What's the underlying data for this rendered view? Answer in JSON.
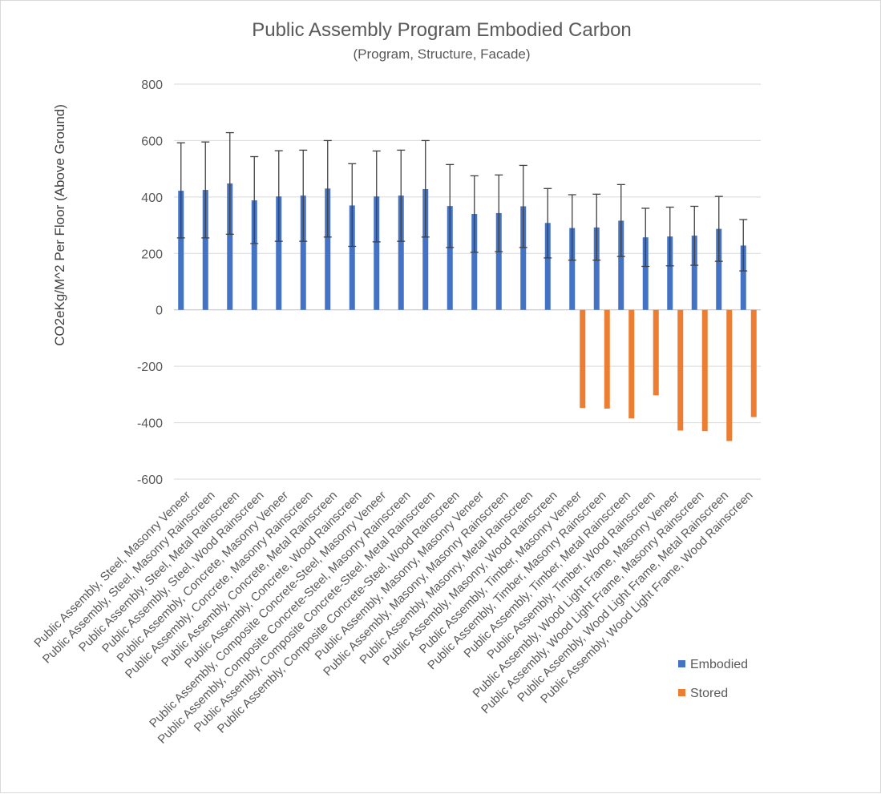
{
  "chart_data": {
    "type": "bar",
    "title": "Public Assembly Program Embodied Carbon",
    "subtitle": "(Program, Structure, Facade)",
    "ylabel": "CO2eKg/M^2 Per Floor (Above Ground)",
    "xlabel": "",
    "ylim": [
      -600,
      800
    ],
    "yticks": [
      800,
      600,
      400,
      200,
      0,
      -200,
      -400,
      -600
    ],
    "grid": true,
    "legend_position": "bottom-right",
    "categories": [
      "Public Assembly, Steel, Masonry Veneer",
      "Public Assembly, Steel, Masonry Rainscreen",
      "Public Assembly, Steel, Metal Rainscreen",
      "Public Assembly, Steel, Wood Rainscreen",
      "Public Assembly, Concrete, Masonry Veneer",
      "Public Assembly, Concrete, Masonry Rainscreen",
      "Public Assembly, Concrete, Metal Rainscreen",
      "Public Assembly, Concrete, Wood Rainscreen",
      "Public Assembly, Composite Concrete-Steel, Masonry Veneer",
      "Public Assembly, Composite Concrete-Steel, Masonry Rainscreen",
      "Public Assembly, Composite Concrete-Steel, Metal Rainscreen",
      "Public Assembly, Composite Concrete-Steel, Wood Rainscreen",
      "Public Assembly, Masonry, Masonry Veneer",
      "Public Assembly, Masonry, Masonry Rainscreen",
      "Public Assembly, Masonry, Metal Rainscreen",
      "Public Assembly, Masonry, Wood Rainscreen",
      "Public Assembly, Timber, Masonry Veneer",
      "Public Assembly, Timber, Masonry Rainscreen",
      "Public Assembly, Timber, Metal Rainscreen",
      "Public Assembly, Timber, Wood Rainscreen",
      "Public Assembly, Wood Light Frame, Masonry Veneer",
      "Public Assembly, Wood Light Frame, Masonry Rainscreen",
      "Public Assembly, Wood Light Frame, Metal Rainscreen",
      "Public Assembly, Wood Light Frame, Wood Rainscreen"
    ],
    "series": [
      {
        "name": "Embodied",
        "color": "#4472c4",
        "values": [
          422,
          425,
          448,
          388,
          402,
          405,
          430,
          370,
          402,
          405,
          428,
          368,
          340,
          343,
          367,
          308,
          290,
          292,
          316,
          257,
          260,
          263,
          287,
          228
        ],
        "error_low": [
          255,
          255,
          268,
          235,
          243,
          243,
          258,
          225,
          241,
          243,
          258,
          221,
          204,
          206,
          221,
          184,
          176,
          176,
          189,
          154,
          156,
          158,
          172,
          138
        ],
        "error_high": [
          592,
          595,
          628,
          543,
          564,
          566,
          600,
          518,
          563,
          566,
          600,
          515,
          475,
          478,
          512,
          430,
          408,
          410,
          444,
          360,
          364,
          367,
          402,
          320
        ]
      },
      {
        "name": "Stored",
        "color": "#ed7d31",
        "values": [
          0,
          0,
          0,
          0,
          0,
          0,
          0,
          0,
          0,
          0,
          0,
          0,
          0,
          0,
          0,
          0,
          -348,
          -350,
          -385,
          -303,
          -428,
          -430,
          -465,
          -380
        ]
      }
    ]
  }
}
